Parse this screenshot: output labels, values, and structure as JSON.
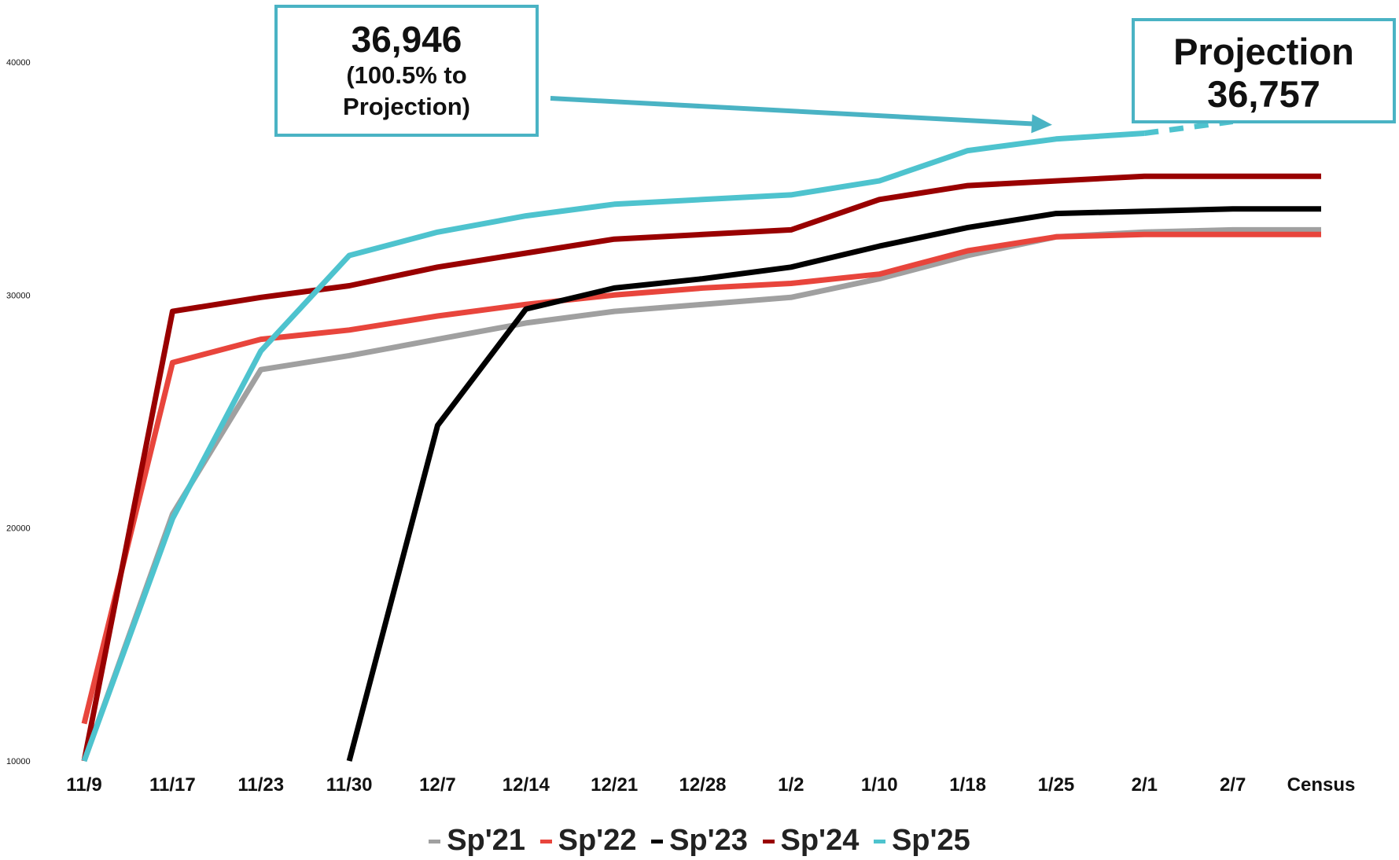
{
  "chart_data": {
    "type": "line",
    "categories": [
      "11/9",
      "11/17",
      "11/23",
      "11/30",
      "12/7",
      "12/14",
      "12/21",
      "12/28",
      "1/2",
      "1/10",
      "1/18",
      "1/25",
      "2/1",
      "2/7",
      "Census"
    ],
    "ylim": [
      10000,
      40000
    ],
    "yticks": [
      "10000",
      "20000",
      "30000",
      "40000"
    ],
    "grid": false,
    "legend_position": "bottom",
    "series": [
      {
        "name": "Sp'21",
        "color": "#a0a0a0",
        "values": [
          10000,
          20600,
          26800,
          27400,
          28100,
          28800,
          29300,
          29600,
          29900,
          30700,
          31700,
          32500,
          32700,
          32800,
          32800
        ]
      },
      {
        "name": "Sp'22",
        "color": "#e8453c",
        "values": [
          11600,
          27100,
          28100,
          28500,
          29100,
          29600,
          30000,
          30300,
          30500,
          30900,
          31900,
          32500,
          32600,
          32600,
          32600
        ]
      },
      {
        "name": "Sp'23",
        "color": "#000000",
        "values": [
          null,
          null,
          null,
          10000,
          24400,
          29400,
          30300,
          30700,
          31200,
          32100,
          32900,
          33500,
          33600,
          33700,
          33700
        ]
      },
      {
        "name": "Sp'24",
        "color": "#990000",
        "values": [
          10000,
          29300,
          29900,
          30400,
          31200,
          31800,
          32400,
          32600,
          32800,
          34100,
          34700,
          34900,
          35100,
          35100,
          35100
        ]
      },
      {
        "name": "Sp'25",
        "color": "#4ec3ce",
        "values": [
          10000,
          20400,
          27600,
          31700,
          32700,
          33400,
          33900,
          34100,
          34300,
          34900,
          36200,
          36700,
          36946,
          null,
          null
        ]
      }
    ],
    "projection": {
      "from_category": "2/1",
      "to_category": "2/7",
      "from_value": 36946,
      "to_value": 37450,
      "color": "#4ec3ce",
      "style": "dashed"
    },
    "annotations": [
      {
        "id": "actual",
        "lines": [
          "36,946",
          "(100.5% to",
          "Projection)"
        ]
      },
      {
        "id": "projection",
        "lines": [
          "Projection",
          "36,757"
        ]
      }
    ]
  }
}
